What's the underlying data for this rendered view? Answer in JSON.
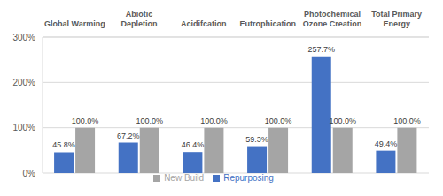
{
  "chart_data": {
    "type": "bar",
    "categories": [
      "Global Warming",
      "Abiotic Depletion",
      "Acidifcation",
      "Eutrophication",
      "Photochemical Ozone Creation",
      "Total Primary Energy"
    ],
    "series": [
      {
        "name": "Repurposing",
        "color": "#4472c4",
        "values": [
          45.8,
          67.2,
          46.4,
          59.3,
          257.7,
          49.4
        ],
        "value_labels": [
          "45.8%",
          "67.2%",
          "46.4%",
          "59.3%",
          "257.7%",
          "49.4%"
        ]
      },
      {
        "name": "New Build",
        "color": "#a5a5a5",
        "values": [
          100,
          100,
          100,
          100,
          100,
          100
        ],
        "value_labels": [
          "100.0%",
          "100.0%",
          "100.0%",
          "100.0%",
          "100.0%",
          "100.0%"
        ]
      }
    ],
    "ylim": [
      0,
      300
    ],
    "yticks": [
      {
        "value": 0,
        "label": "0%"
      },
      {
        "value": 100,
        "label": "100%"
      },
      {
        "value": 200,
        "label": "200%"
      },
      {
        "value": 300,
        "label": "300%"
      }
    ],
    "grid": true,
    "data_labels": true,
    "legend": "bottom"
  }
}
